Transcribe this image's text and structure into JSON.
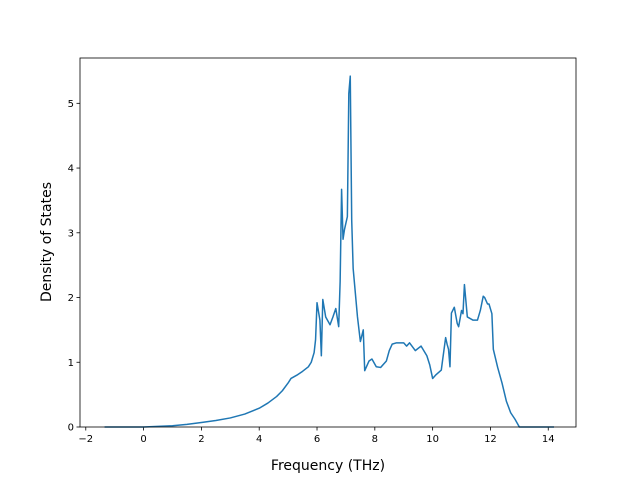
{
  "chart_data": {
    "type": "line",
    "title": "",
    "xlabel": "Frequency (THz)",
    "ylabel": "Density of States",
    "xlim": [
      -2.2,
      14.96
    ],
    "ylim": [
      0,
      5.7
    ],
    "x_ticks": [
      -2,
      0,
      2,
      4,
      6,
      8,
      10,
      12,
      14
    ],
    "y_ticks": [
      0,
      1,
      2,
      3,
      4,
      5
    ],
    "grid": false,
    "legend": "none",
    "line_color": "#1f77b4",
    "series": [
      {
        "x": [
          -1.35,
          -1.0,
          -0.5,
          0.0,
          0.5,
          1.0,
          1.5,
          2.0,
          2.5,
          3.0,
          3.5,
          4.0,
          4.3,
          4.6,
          4.8,
          5.0,
          5.1,
          5.3,
          5.5,
          5.7,
          5.8,
          5.9,
          5.95,
          6.0,
          6.1,
          6.15,
          6.2,
          6.3,
          6.45,
          6.55,
          6.65,
          6.75,
          6.8,
          6.85,
          6.9,
          6.95,
          7.0,
          7.05,
          7.1,
          7.15,
          7.2,
          7.25,
          7.3,
          7.35,
          7.4,
          7.5,
          7.6,
          7.65,
          7.7,
          7.8,
          7.9,
          8.05,
          8.2,
          8.4,
          8.5,
          8.6,
          8.75,
          9.0,
          9.1,
          9.2,
          9.4,
          9.6,
          9.8,
          9.9,
          10.0,
          10.1,
          10.3,
          10.35,
          10.45,
          10.5,
          10.55,
          10.6,
          10.65,
          10.75,
          10.85,
          10.9,
          11.0,
          11.05,
          11.1,
          11.2,
          11.4,
          11.55,
          11.65,
          11.75,
          11.8,
          11.9,
          11.95,
          12.05,
          12.1,
          12.25,
          12.4,
          12.55,
          12.7,
          12.85,
          13.0,
          13.3,
          13.6,
          14.1,
          14.2
        ],
        "y": [
          0.0,
          0.0,
          0.0,
          0.0,
          0.01,
          0.02,
          0.04,
          0.07,
          0.1,
          0.14,
          0.2,
          0.29,
          0.37,
          0.47,
          0.56,
          0.68,
          0.75,
          0.8,
          0.86,
          0.93,
          1.0,
          1.15,
          1.35,
          1.92,
          1.65,
          1.1,
          1.97,
          1.7,
          1.58,
          1.7,
          1.83,
          1.55,
          2.25,
          3.67,
          2.9,
          3.05,
          3.15,
          3.25,
          5.15,
          5.42,
          3.2,
          2.45,
          2.2,
          1.95,
          1.7,
          1.32,
          1.5,
          0.87,
          0.92,
          1.02,
          1.05,
          0.93,
          0.92,
          1.02,
          1.18,
          1.28,
          1.3,
          1.3,
          1.25,
          1.3,
          1.18,
          1.25,
          1.1,
          0.96,
          0.75,
          0.8,
          0.88,
          1.05,
          1.38,
          1.28,
          1.2,
          0.93,
          1.76,
          1.85,
          1.6,
          1.55,
          1.8,
          1.75,
          2.2,
          1.7,
          1.65,
          1.65,
          1.8,
          2.02,
          2.0,
          1.9,
          1.9,
          1.75,
          1.2,
          0.92,
          0.68,
          0.4,
          0.22,
          0.12,
          0.0,
          0.0,
          0.0,
          0.0,
          0.0
        ]
      }
    ]
  }
}
